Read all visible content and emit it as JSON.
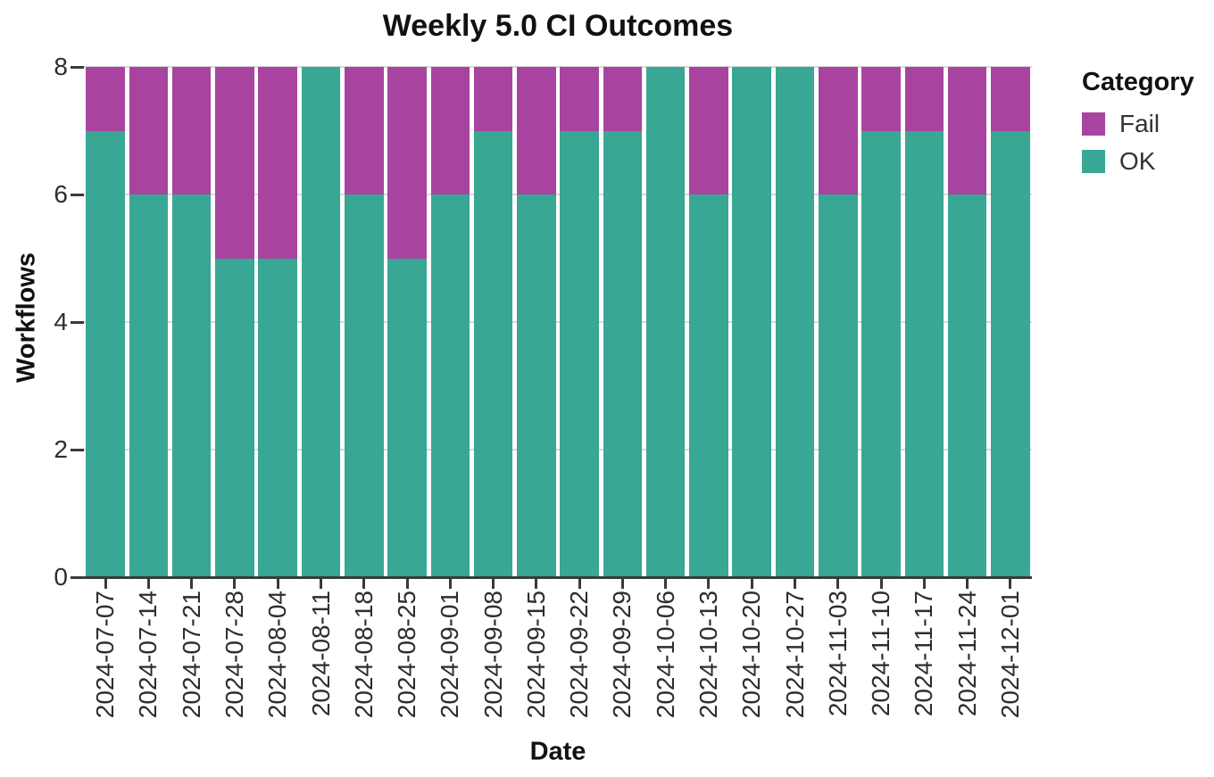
{
  "chart_data": {
    "type": "bar",
    "stacked": true,
    "title": "Weekly 5.0 CI Outcomes",
    "xlabel": "Date",
    "ylabel": "Workflows",
    "ylim": [
      0,
      8
    ],
    "yticks": [
      0,
      2,
      4,
      6,
      8
    ],
    "grid": true,
    "categories": [
      "2024-07-07",
      "2024-07-14",
      "2024-07-21",
      "2024-07-28",
      "2024-08-04",
      "2024-08-11",
      "2024-08-18",
      "2024-08-25",
      "2024-09-01",
      "2024-09-08",
      "2024-09-15",
      "2024-09-22",
      "2024-09-29",
      "2024-10-06",
      "2024-10-13",
      "2024-10-20",
      "2024-10-27",
      "2024-11-03",
      "2024-11-10",
      "2024-11-17",
      "2024-11-24",
      "2024-12-01"
    ],
    "series": [
      {
        "name": "OK",
        "color": "#38a794",
        "values": [
          7,
          6,
          6,
          5,
          5,
          8,
          6,
          5,
          6,
          7,
          6,
          7,
          7,
          8,
          6,
          8,
          8,
          6,
          7,
          7,
          6,
          7
        ]
      },
      {
        "name": "Fail",
        "color": "#a8449f",
        "values": [
          1,
          2,
          2,
          3,
          3,
          0,
          2,
          3,
          2,
          1,
          2,
          1,
          1,
          0,
          2,
          0,
          0,
          2,
          1,
          1,
          2,
          1
        ]
      }
    ],
    "legend": {
      "title": "Category",
      "position": "right",
      "items": [
        {
          "label": "Fail",
          "color": "#a8449f"
        },
        {
          "label": "OK",
          "color": "#38a794"
        }
      ]
    },
    "colors": {
      "gridline": "#d8d8d8",
      "axis": "#3a3a3a",
      "tick_text": "#2e2e2e",
      "background": "#ffffff"
    }
  }
}
